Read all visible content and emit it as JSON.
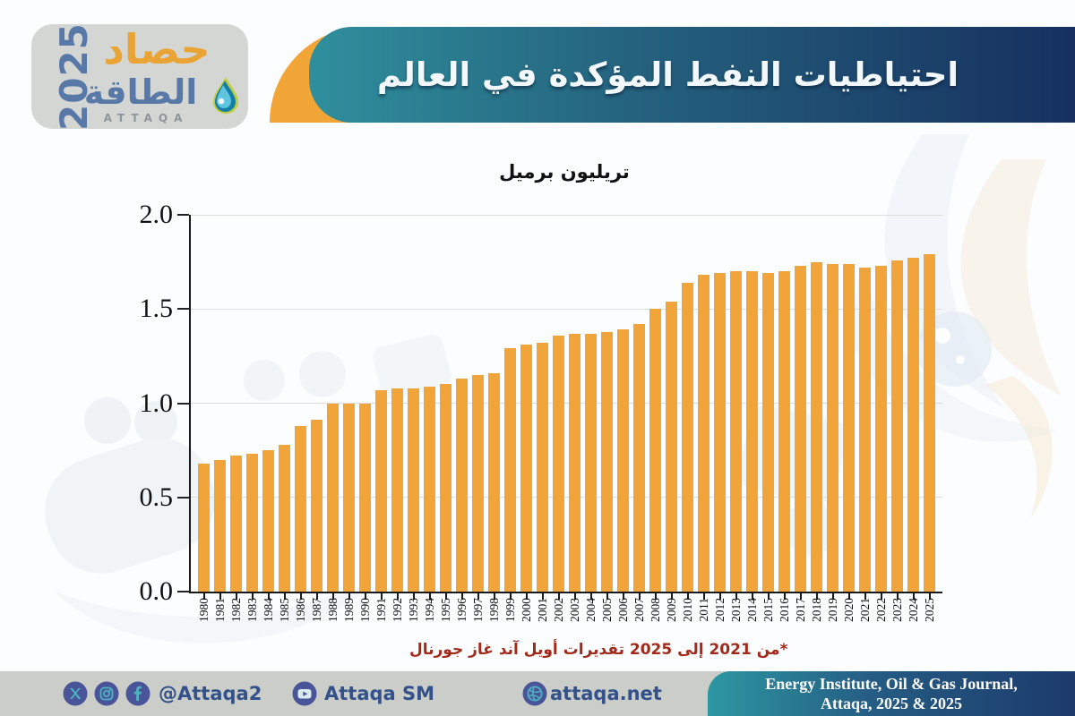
{
  "logo": {
    "year": "2025",
    "title_line1": "حصاد",
    "title_line2": "الطاقة",
    "latin": "ATTAQA"
  },
  "header": {
    "title": "احتياطيات النفط المؤكدة في العالم"
  },
  "chart_data": {
    "type": "bar",
    "title": "تريليون برميل",
    "xlabel": "",
    "ylabel": "تريليون برميل",
    "categories": [
      "1980",
      "1981",
      "1982",
      "1983",
      "1984",
      "1985",
      "1986",
      "1987",
      "1988",
      "1989",
      "1990",
      "1991",
      "1992",
      "1993",
      "1994",
      "1995",
      "1996",
      "1997",
      "1998",
      "1999",
      "2000",
      "2001",
      "2002",
      "2003",
      "2004",
      "2005",
      "2006",
      "2007",
      "2008",
      "2009",
      "2010",
      "2011",
      "2012",
      "2013",
      "2014",
      "2015",
      "2016",
      "2017",
      "2018",
      "2019",
      "2020",
      "2021",
      "2022",
      "2023",
      "2024",
      "2025"
    ],
    "values": [
      0.68,
      0.7,
      0.72,
      0.73,
      0.75,
      0.78,
      0.88,
      0.91,
      1.0,
      1.0,
      1.0,
      1.07,
      1.08,
      1.08,
      1.09,
      1.1,
      1.13,
      1.15,
      1.16,
      1.29,
      1.31,
      1.32,
      1.36,
      1.37,
      1.37,
      1.38,
      1.39,
      1.42,
      1.5,
      1.54,
      1.64,
      1.68,
      1.69,
      1.7,
      1.7,
      1.69,
      1.7,
      1.73,
      1.75,
      1.74,
      1.74,
      1.72,
      1.73,
      1.76,
      1.77,
      1.79
    ],
    "ylim": [
      0,
      2.0
    ],
    "yticks": [
      0.0,
      0.5,
      1.0,
      1.5,
      2.0
    ],
    "grid": true,
    "legend": "none",
    "bar_color": "#F1A43A"
  },
  "footnote": {
    "text": "*من 2021 إلى 2025 تقديرات أويل آند غاز جورنال",
    "color": "#A12A1B"
  },
  "footer": {
    "handle": "@Attaqa2",
    "youtube_label": "Attaqa SM",
    "website": "attaqa.net",
    "source_line1": "Energy Institute, Oil & Gas Journal,",
    "source_line2": "Attaqa, 2025 & 2025",
    "icons": [
      "x-icon",
      "instagram-icon",
      "facebook-icon",
      "youtube-icon",
      "globe-icon"
    ],
    "icon_circle_color": "#4A5499",
    "icon_glyph_color": "#4DB3C0"
  },
  "colors": {
    "accent_orange": "#F2A537",
    "banner_teal": "#2F8F9D",
    "banner_navy": "#16305F",
    "footer_bg": "#CACDC8",
    "logo_blue": "#5878A8",
    "logo_orange": "#E9A435"
  }
}
